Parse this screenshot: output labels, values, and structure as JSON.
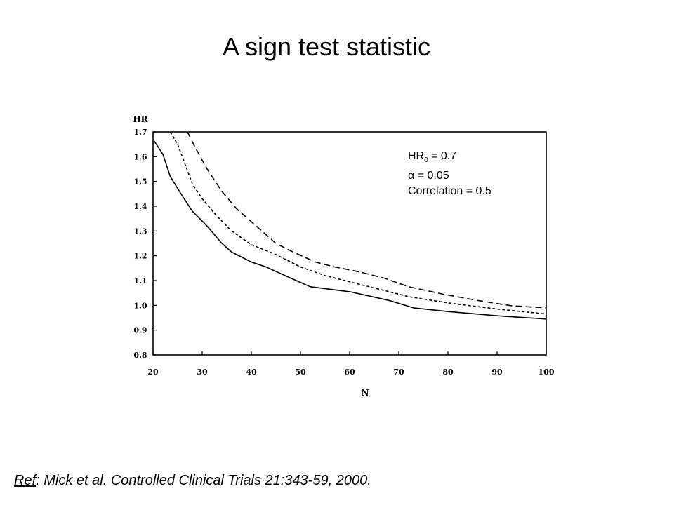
{
  "title": "A sign test statistic",
  "annotation": {
    "hr_prefix": "HR",
    "hr_subscript": "0",
    "hr_value": " = 0.7",
    "alpha_symbol": "α",
    "alpha_value": " = 0.05",
    "correlation": "Correlation = 0.5"
  },
  "reference": {
    "label": "Ref",
    "text": ": Mick et al. Controlled Clinical Trials 21:343-59, 2000."
  },
  "chart_data": {
    "type": "line",
    "xlabel": "N",
    "ylabel": "HR",
    "xlim": [
      20,
      100
    ],
    "ylim": [
      0.8,
      1.7
    ],
    "x_ticks": [
      "20",
      "30",
      "40",
      "50",
      "60",
      "70",
      "80",
      "90",
      "100"
    ],
    "y_ticks": [
      "0.8",
      "0.9",
      "1.0",
      "1.1",
      "1.2",
      "1.3",
      "1.4",
      "1.5",
      "1.6",
      "1.7"
    ],
    "grid": false,
    "legend": "none",
    "series": [
      {
        "line_style": "solid",
        "x": [
          20,
          22,
          23.5,
          26,
          28,
          31,
          34,
          36,
          40,
          43,
          48,
          52,
          60,
          68,
          73,
          80,
          90,
          100
        ],
        "y": [
          1.67,
          1.61,
          1.52,
          1.44,
          1.38,
          1.32,
          1.25,
          1.215,
          1.175,
          1.155,
          1.11,
          1.075,
          1.055,
          1.02,
          0.99,
          0.975,
          0.958,
          0.945
        ]
      },
      {
        "line_style": "short-dash",
        "x": [
          23.5,
          25,
          26.5,
          28,
          30,
          33,
          36,
          40,
          45,
          50,
          55,
          60,
          67,
          72,
          80,
          90,
          100
        ],
        "y": [
          1.7,
          1.65,
          1.57,
          1.49,
          1.43,
          1.36,
          1.3,
          1.245,
          1.205,
          1.155,
          1.12,
          1.095,
          1.06,
          1.035,
          1.01,
          0.985,
          0.965
        ]
      },
      {
        "line_style": "long-dash",
        "x": [
          27,
          28.5,
          31,
          34,
          37,
          41,
          45,
          48,
          53,
          57,
          62,
          67,
          72,
          79,
          86,
          93,
          100
        ],
        "y": [
          1.7,
          1.64,
          1.55,
          1.46,
          1.39,
          1.32,
          1.25,
          1.22,
          1.175,
          1.155,
          1.135,
          1.11,
          1.075,
          1.045,
          1.02,
          0.998,
          0.99
        ]
      }
    ]
  }
}
